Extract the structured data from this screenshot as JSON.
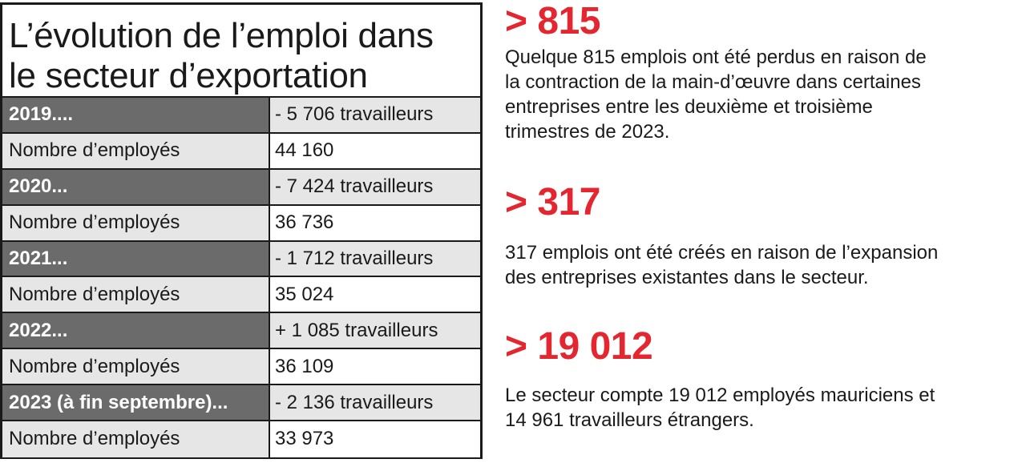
{
  "table": {
    "title_line1": "L’évolution de l’emploi dans",
    "title_line2": "le secteur d’exportation",
    "rows": [
      {
        "label": "2019....",
        "value": "- 5 706 travailleurs"
      },
      {
        "label": "Nombre d’employés",
        "value": "44 160"
      },
      {
        "label": "2020...",
        "value": "- 7 424 travailleurs"
      },
      {
        "label": "Nombre d’employés",
        "value": "36 736"
      },
      {
        "label": "2021...",
        "value": "- 1 712 travailleurs"
      },
      {
        "label": "Nombre d’employés",
        "value": "35 024"
      },
      {
        "label": "2022...",
        "value": "+ 1 085 travailleurs"
      },
      {
        "label": "Nombre d’employés",
        "value": "36 109"
      },
      {
        "label": "2023 (à fin septembre)...",
        "value": "- 2 136 travailleurs"
      },
      {
        "label": "Nombre d’employés",
        "value": "33 973"
      }
    ]
  },
  "stats": [
    {
      "number": "> 815",
      "text_lines": [
        "Quelque 815 emplois ont été perdus en raison de",
        "la contraction de la main-d’œuvre dans certaines",
        "entreprises entre les deuxième et troisième",
        "trimestres de 2023."
      ]
    },
    {
      "number": "> 317",
      "text_lines": [
        "317 emplois ont été créés en raison de l’expansion",
        "des entreprises existantes dans le secteur."
      ]
    },
    {
      "number": "> 19 012",
      "text_lines": [
        "Le secteur compte 19 012 employés mauriciens et",
        "14 961 travailleurs étrangers."
      ]
    }
  ],
  "colors": {
    "accent": "#e3262f",
    "dark_row": "#6b6b6b",
    "light_row": "#e6e6e6",
    "text": "#1a1a1a"
  }
}
